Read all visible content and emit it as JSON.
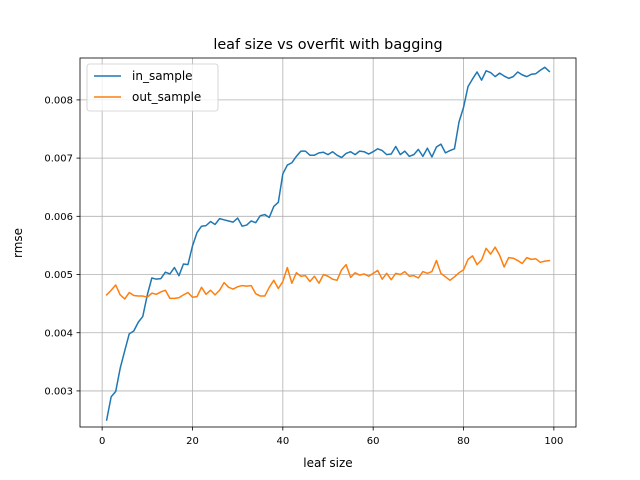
{
  "chart_data": {
    "type": "line",
    "title": "leaf size vs overfit with bagging",
    "xlabel": "leaf size",
    "ylabel": "rmse",
    "xlim": [
      -4.9,
      104.9
    ],
    "ylim": [
      0.00238,
      0.00872
    ],
    "xticks": [
      0,
      20,
      40,
      60,
      80,
      100
    ],
    "xtick_labels": [
      "0",
      "20",
      "40",
      "60",
      "80",
      "100"
    ],
    "yticks": [
      0.003,
      0.004,
      0.005,
      0.006,
      0.007,
      0.008
    ],
    "ytick_labels": [
      "0.003",
      "0.004",
      "0.005",
      "0.006",
      "0.007",
      "0.008"
    ],
    "grid": true,
    "legend_position": "upper-left",
    "x": [
      1,
      2,
      3,
      4,
      5,
      6,
      7,
      8,
      9,
      10,
      11,
      12,
      13,
      14,
      15,
      16,
      17,
      18,
      19,
      20,
      21,
      22,
      23,
      24,
      25,
      26,
      27,
      28,
      29,
      30,
      31,
      32,
      33,
      34,
      35,
      36,
      37,
      38,
      39,
      40,
      41,
      42,
      43,
      44,
      45,
      46,
      47,
      48,
      49,
      50,
      51,
      52,
      53,
      54,
      55,
      56,
      57,
      58,
      59,
      60,
      61,
      62,
      63,
      64,
      65,
      66,
      67,
      68,
      69,
      70,
      71,
      72,
      73,
      74,
      75,
      76,
      77,
      78,
      79,
      80,
      81,
      82,
      83,
      84,
      85,
      86,
      87,
      88,
      89,
      90,
      91,
      92,
      93,
      94,
      95,
      96,
      97,
      98,
      99
    ],
    "series": [
      {
        "name": "in_sample",
        "color": "#1f77b4",
        "values": [
          0.0025,
          0.0029,
          0.00299,
          0.00339,
          0.00369,
          0.00398,
          0.00403,
          0.00418,
          0.00428,
          0.00465,
          0.00494,
          0.00492,
          0.00493,
          0.00504,
          0.00501,
          0.00512,
          0.00498,
          0.00518,
          0.00517,
          0.00549,
          0.00572,
          0.00583,
          0.00584,
          0.00591,
          0.00586,
          0.00596,
          0.00594,
          0.00592,
          0.0059,
          0.00597,
          0.00583,
          0.00585,
          0.00592,
          0.00589,
          0.00601,
          0.00603,
          0.00598,
          0.00617,
          0.00624,
          0.00673,
          0.00688,
          0.00692,
          0.00703,
          0.00712,
          0.00712,
          0.00705,
          0.00705,
          0.00709,
          0.0071,
          0.00706,
          0.00711,
          0.00705,
          0.00701,
          0.00708,
          0.00711,
          0.00706,
          0.00712,
          0.00711,
          0.00707,
          0.00711,
          0.00716,
          0.00713,
          0.00706,
          0.00707,
          0.0072,
          0.00706,
          0.00712,
          0.00703,
          0.00706,
          0.00715,
          0.00703,
          0.00717,
          0.00702,
          0.00719,
          0.00724,
          0.00709,
          0.00713,
          0.00716,
          0.00762,
          0.00787,
          0.00823,
          0.00836,
          0.00848,
          0.00834,
          0.0085,
          0.00847,
          0.0084,
          0.00846,
          0.00841,
          0.00837,
          0.0084,
          0.00848,
          0.00843,
          0.0084,
          0.00844,
          0.00845,
          0.00851,
          0.00856,
          0.00849
        ]
      },
      {
        "name": "out_sample",
        "color": "#ff7f0e",
        "values": [
          0.00465,
          0.00473,
          0.00482,
          0.00465,
          0.00458,
          0.00469,
          0.00464,
          0.00463,
          0.00463,
          0.00461,
          0.00468,
          0.00466,
          0.0047,
          0.00473,
          0.00459,
          0.00459,
          0.0046,
          0.00465,
          0.00469,
          0.00461,
          0.00462,
          0.00478,
          0.00466,
          0.00473,
          0.00465,
          0.00473,
          0.00486,
          0.00478,
          0.00475,
          0.00479,
          0.00481,
          0.0048,
          0.00481,
          0.00467,
          0.00463,
          0.00463,
          0.00478,
          0.0049,
          0.00476,
          0.00488,
          0.00512,
          0.00485,
          0.00503,
          0.00497,
          0.00498,
          0.00488,
          0.00497,
          0.00485,
          0.005,
          0.00497,
          0.00492,
          0.0049,
          0.00508,
          0.00517,
          0.00495,
          0.00503,
          0.00499,
          0.00501,
          0.00497,
          0.00502,
          0.00507,
          0.00492,
          0.00502,
          0.00491,
          0.00502,
          0.005,
          0.00505,
          0.00497,
          0.00498,
          0.00494,
          0.00505,
          0.00502,
          0.00505,
          0.00524,
          0.00502,
          0.00496,
          0.0049,
          0.00496,
          0.00503,
          0.00508,
          0.00526,
          0.00532,
          0.00517,
          0.00525,
          0.00545,
          0.00535,
          0.00547,
          0.00533,
          0.00513,
          0.00529,
          0.00528,
          0.00524,
          0.00519,
          0.00529,
          0.00526,
          0.00527,
          0.00521,
          0.00523,
          0.00524
        ]
      }
    ]
  }
}
